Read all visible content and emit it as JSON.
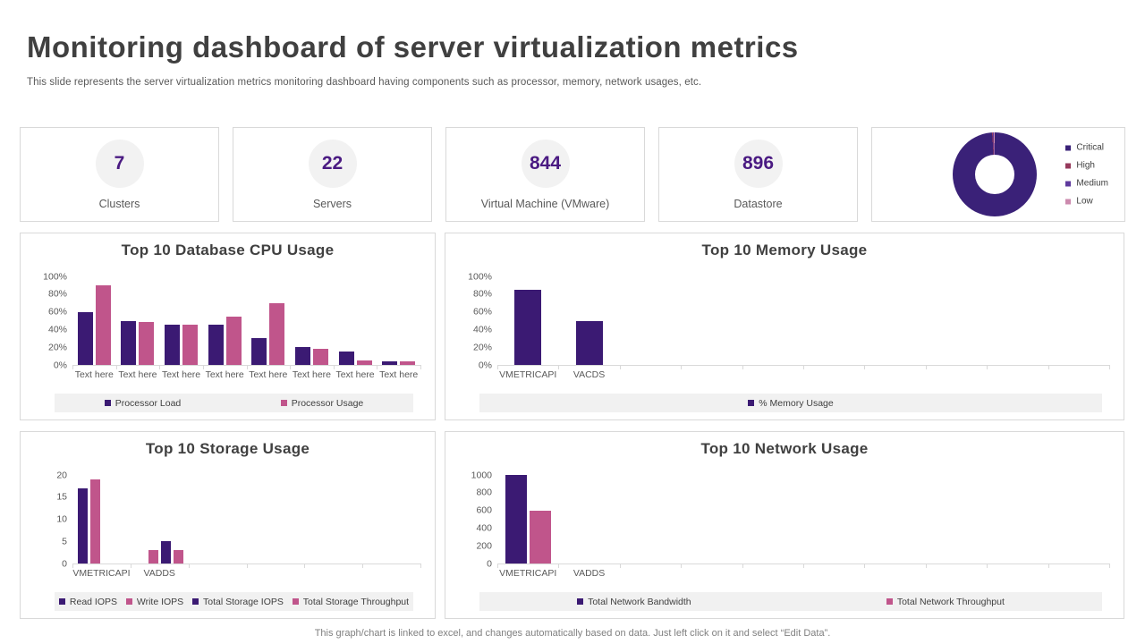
{
  "header": {
    "title": "Monitoring dashboard of server virtualization metrics",
    "subtitle": "This slide represents the server virtualization metrics monitoring dashboard having components such as processor, memory, network usages, etc."
  },
  "kpis": [
    {
      "value": "7",
      "label": "Clusters"
    },
    {
      "value": "22",
      "label": "Servers"
    },
    {
      "value": "844",
      "label": "Virtual Machine (VMware)"
    },
    {
      "value": "896",
      "label": "Datastore"
    }
  ],
  "chart_data": [
    {
      "id": "severity",
      "type": "pie",
      "subtype": "donut",
      "legend_position": "right",
      "slices": [
        {
          "label": "Critical",
          "value": 99,
          "color": "#3A2178"
        },
        {
          "label": "High",
          "value": 0.33,
          "color": "#963A5C"
        },
        {
          "label": "Medium",
          "value": 0.33,
          "color": "#5F3A9E"
        },
        {
          "label": "Low",
          "value": 0.34,
          "color": "#CC8AAE"
        }
      ]
    },
    {
      "id": "cpu",
      "type": "bar",
      "title": "Top 10 Database CPU Usage",
      "categories": [
        "Text here",
        "Text here",
        "Text here",
        "Text here",
        "Text here",
        "Text here",
        "Text here",
        "Text here"
      ],
      "slots": 8,
      "ylim": [
        0,
        100
      ],
      "yticks": [
        {
          "v": 0,
          "label": "0%"
        },
        {
          "v": 20,
          "label": "20%"
        },
        {
          "v": 40,
          "label": "40%"
        },
        {
          "v": 60,
          "label": "60%"
        },
        {
          "v": 80,
          "label": "80%"
        },
        {
          "v": 100,
          "label": "100%"
        }
      ],
      "grid": false,
      "legend_position": "bottom",
      "series": [
        {
          "name": "Processor Load",
          "color": "#3B1A73",
          "values": [
            60,
            50,
            45,
            45,
            30,
            20,
            15,
            4
          ]
        },
        {
          "name": "Processor Usage",
          "color": "#C0558B",
          "values": [
            90,
            48,
            45,
            55,
            70,
            18,
            5,
            4
          ]
        }
      ]
    },
    {
      "id": "memory",
      "type": "bar",
      "title": "Top 10 Memory Usage",
      "categories": [
        "VMETRICAPI",
        "VACDS"
      ],
      "slots": 10,
      "ylim": [
        0,
        100
      ],
      "yticks": [
        {
          "v": 0,
          "label": "0%"
        },
        {
          "v": 20,
          "label": "20%"
        },
        {
          "v": 40,
          "label": "40%"
        },
        {
          "v": 60,
          "label": "60%"
        },
        {
          "v": 80,
          "label": "80%"
        },
        {
          "v": 100,
          "label": "100%"
        }
      ],
      "grid": false,
      "legend_position": "bottom",
      "series": [
        {
          "name": "% Memory Usage",
          "color": "#3B1A73",
          "values": [
            85,
            50
          ]
        }
      ]
    },
    {
      "id": "storage",
      "type": "bar",
      "title": "Top 10 Storage Usage",
      "categories": [
        "VMETRICAPI",
        "VADDS"
      ],
      "slots": 6,
      "ylim": [
        0,
        20
      ],
      "yticks": [
        {
          "v": 0,
          "label": "0"
        },
        {
          "v": 5,
          "label": "5"
        },
        {
          "v": 10,
          "label": "10"
        },
        {
          "v": 15,
          "label": "15"
        },
        {
          "v": 20,
          "label": "20"
        }
      ],
      "grid": false,
      "legend_position": "bottom",
      "series": [
        {
          "name": "Read IOPS",
          "color": "#3B1A73",
          "values": [
            17,
            0
          ]
        },
        {
          "name": "Write IOPS",
          "color": "#C0558B",
          "values": [
            19,
            3
          ]
        },
        {
          "name": "Total Storage IOPS",
          "color": "#3B1A73",
          "values": [
            0,
            5
          ]
        },
        {
          "name": "Total Storage Throughput",
          "color": "#C0558B",
          "values": [
            0,
            3
          ]
        }
      ]
    },
    {
      "id": "network",
      "type": "bar",
      "title": "Top 10 Network Usage",
      "categories": [
        "VMETRICAPI",
        "VADDS"
      ],
      "slots": 10,
      "ylim": [
        0,
        1000
      ],
      "yticks": [
        {
          "v": 0,
          "label": "0"
        },
        {
          "v": 200,
          "label": "200"
        },
        {
          "v": 400,
          "label": "400"
        },
        {
          "v": 600,
          "label": "600"
        },
        {
          "v": 800,
          "label": "800"
        },
        {
          "v": 1000,
          "label": "1000"
        }
      ],
      "grid": false,
      "legend_position": "bottom",
      "series": [
        {
          "name": "Total Network Bandwidth",
          "color": "#3B1A73",
          "values": [
            1000,
            0
          ]
        },
        {
          "name": "Total Network Throughput",
          "color": "#C0558B",
          "values": [
            600,
            0
          ]
        }
      ]
    }
  ],
  "footer": {
    "note": "This graph/chart is linked to excel, and changes automatically based on data. Just left click on it and select “Edit Data”."
  }
}
